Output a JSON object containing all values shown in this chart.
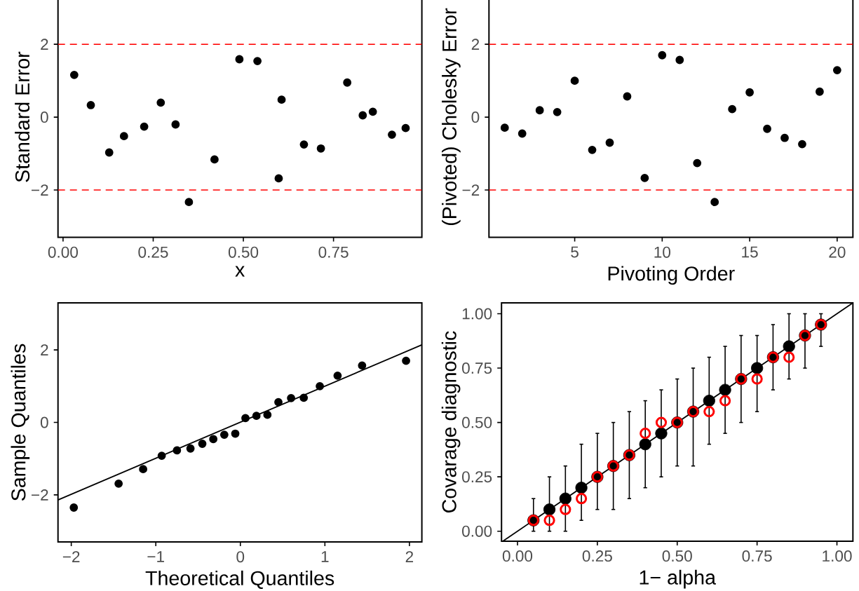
{
  "chart_data": [
    {
      "type": "scatter",
      "xlabel": "x",
      "ylabel": "Standard Error",
      "marker": "circle",
      "grid": false,
      "xlim": [
        -0.014,
        0.995
      ],
      "ylim": [
        -3.3,
        3.3
      ],
      "xticks": [
        {
          "value": 0,
          "label": "0.00"
        },
        {
          "value": 0.25,
          "label": "0.25"
        },
        {
          "value": 0.5,
          "label": "0.50"
        },
        {
          "value": 0.75,
          "label": "0.75"
        }
      ],
      "yticks": [
        {
          "value": -2,
          "label": "−2"
        },
        0,
        2
      ],
      "ref_lines": [
        {
          "axis": "y",
          "value": 2,
          "color": "#ff0000",
          "line_style": "dashed"
        },
        {
          "axis": "y",
          "value": -2,
          "color": "#ff0000",
          "line_style": "dashed"
        }
      ],
      "series": [
        {
          "color": "#000000",
          "x": [
            0.031,
            0.077,
            0.128,
            0.169,
            0.225,
            0.271,
            0.312,
            0.349,
            0.42,
            0.489,
            0.539,
            0.598,
            0.606,
            0.668,
            0.715,
            0.788,
            0.831,
            0.859,
            0.912,
            0.95
          ],
          "values": [
            1.16,
            0.33,
            -0.97,
            -0.52,
            -0.26,
            0.4,
            -0.2,
            -2.33,
            -1.16,
            1.59,
            1.54,
            -1.68,
            0.48,
            -0.75,
            -0.86,
            0.95,
            0.05,
            0.15,
            -0.48,
            -0.3
          ]
        }
      ]
    },
    {
      "type": "scatter",
      "xlabel": "Pivoting Order",
      "ylabel": "(Pivoted) Cholesky Error",
      "marker": "circle",
      "grid": false,
      "xlim": [
        0.1,
        20.9
      ],
      "ylim": [
        -3.3,
        3.3
      ],
      "xticks": [
        5,
        10,
        15,
        20
      ],
      "yticks": [
        {
          "value": -2,
          "label": "−2"
        },
        0,
        2
      ],
      "ref_lines": [
        {
          "axis": "y",
          "value": 2,
          "color": "#ff0000",
          "line_style": "dashed"
        },
        {
          "axis": "y",
          "value": -2,
          "color": "#ff0000",
          "line_style": "dashed"
        }
      ],
      "series": [
        {
          "color": "#000000",
          "x": [
            1,
            2,
            3,
            4,
            5,
            6,
            7,
            8,
            9,
            10,
            11,
            12,
            13,
            14,
            15,
            16,
            17,
            18,
            19,
            20
          ],
          "values": [
            -0.29,
            -0.45,
            0.19,
            0.14,
            1.0,
            -0.9,
            -0.7,
            0.57,
            -1.67,
            1.7,
            1.57,
            -1.26,
            -2.33,
            0.22,
            0.68,
            -0.32,
            -0.57,
            -0.74,
            0.7,
            1.29
          ]
        }
      ]
    },
    {
      "type": "scatter",
      "xlabel": "Theoretical Quantiles",
      "ylabel": "Sample Quantiles",
      "marker": "circle",
      "grid": false,
      "xlim": [
        -2.157,
        2.147
      ],
      "ylim": [
        -3.3,
        3.3
      ],
      "xticks": [
        {
          "value": -2,
          "label": "−2"
        },
        {
          "value": -1,
          "label": "−1"
        },
        0,
        1,
        2
      ],
      "yticks": [
        {
          "value": -2,
          "label": "−2"
        },
        0,
        2
      ],
      "series": [
        {
          "color": "#000000",
          "x": [
            -1.97,
            -1.44,
            -1.15,
            -0.93,
            -0.75,
            -0.59,
            -0.45,
            -0.32,
            -0.19,
            -0.06,
            0.06,
            0.19,
            0.32,
            0.45,
            0.6,
            0.75,
            0.94,
            1.15,
            1.44,
            1.96
          ],
          "values": [
            -2.35,
            -1.69,
            -1.29,
            -0.92,
            -0.77,
            -0.72,
            -0.59,
            -0.46,
            -0.34,
            -0.31,
            0.12,
            0.18,
            0.21,
            0.56,
            0.67,
            0.68,
            1.0,
            1.29,
            1.57,
            1.7
          ]
        },
        {
          "type": "line",
          "marker": "none",
          "color": "#000000",
          "x": [
            -2.157,
            2.147
          ],
          "values": [
            -2.14,
            2.14
          ]
        }
      ]
    },
    {
      "type": "scatter",
      "xlabel": "1− alpha",
      "ylabel": "Covarage diagnostic",
      "marker": "circle",
      "grid": false,
      "xlim": [
        -0.05,
        1.05
      ],
      "ylim": [
        -0.046,
        1.05
      ],
      "xticks": [
        {
          "value": 0,
          "label": "0.00"
        },
        {
          "value": 0.25,
          "label": "0.25"
        },
        {
          "value": 0.5,
          "label": "0.50"
        },
        {
          "value": 0.75,
          "label": "0.75"
        },
        {
          "value": 1,
          "label": "1.00"
        }
      ],
      "yticks": [
        {
          "value": 0,
          "label": "0.00"
        },
        {
          "value": 0.25,
          "label": "0.25"
        },
        {
          "value": 0.5,
          "label": "0.50"
        },
        {
          "value": 0.75,
          "label": "0.75"
        },
        {
          "value": 1,
          "label": "1.00"
        }
      ],
      "series": [
        {
          "type": "line",
          "marker": "none",
          "color": "#000000",
          "x": [
            -0.046,
            1.05
          ],
          "values": [
            -0.046,
            1.05
          ]
        },
        {
          "color": "#000000",
          "x": [
            0.05,
            0.1,
            0.15,
            0.2,
            0.25,
            0.3,
            0.35,
            0.4,
            0.45,
            0.5,
            0.55,
            0.6,
            0.65,
            0.7,
            0.75,
            0.8,
            0.85,
            0.9,
            0.95
          ],
          "values": [
            0.05,
            0.1,
            0.15,
            0.2,
            0.25,
            0.3,
            0.35,
            0.4,
            0.45,
            0.5,
            0.55,
            0.6,
            0.65,
            0.7,
            0.75,
            0.8,
            0.85,
            0.9,
            0.95
          ],
          "errors": [
            [
              0,
              0.15
            ],
            [
              0,
              0.25
            ],
            [
              0,
              0.3
            ],
            [
              0.05,
              0.4
            ],
            [
              0.1,
              0.45
            ],
            [
              0.1,
              0.5
            ],
            [
              0.15,
              0.55
            ],
            [
              0.2,
              0.6
            ],
            [
              0.25,
              0.65
            ],
            [
              0.3,
              0.7
            ],
            [
              0.3,
              0.75
            ],
            [
              0.4,
              0.8
            ],
            [
              0.45,
              0.85
            ],
            [
              0.5,
              0.9
            ],
            [
              0.55,
              0.9
            ],
            [
              0.65,
              0.95
            ],
            [
              0.7,
              1.0
            ],
            [
              0.75,
              1.0
            ],
            [
              0.85,
              1.0
            ]
          ]
        },
        {
          "color": "#ff0000",
          "x": [
            0.05,
            0.1,
            0.15,
            0.2,
            0.25,
            0.3,
            0.35,
            0.4,
            0.45,
            0.5,
            0.55,
            0.6,
            0.65,
            0.7,
            0.75,
            0.8,
            0.85,
            0.9,
            0.95
          ],
          "values": [
            0.05,
            0.05,
            0.1,
            0.15,
            0.25,
            0.3,
            0.35,
            0.45,
            0.5,
            0.5,
            0.55,
            0.55,
            0.6,
            0.7,
            0.7,
            0.8,
            0.8,
            0.9,
            0.95
          ]
        }
      ]
    }
  ]
}
